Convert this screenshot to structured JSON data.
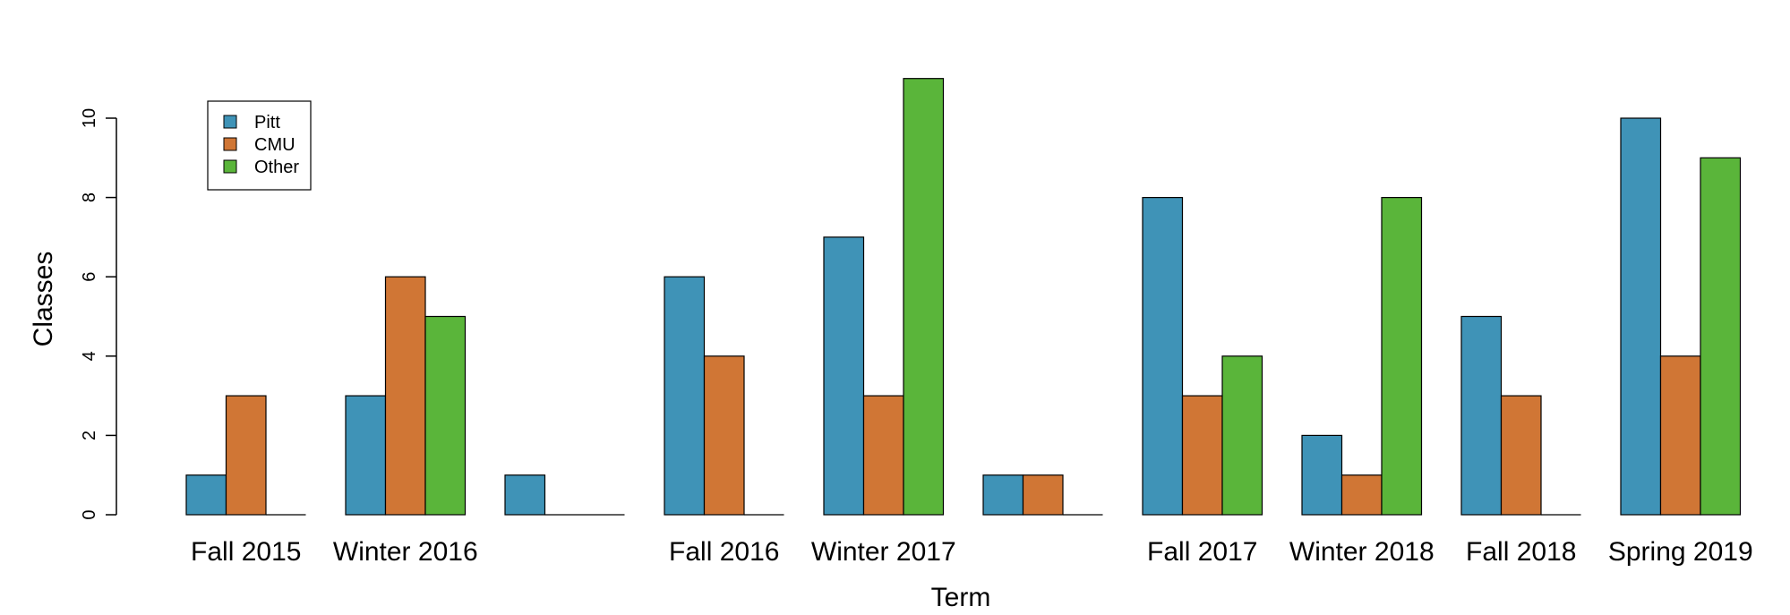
{
  "chart_data": {
    "type": "bar",
    "title": "",
    "xlabel": "Term",
    "ylabel": "Classes",
    "ylim": [
      0,
      10
    ],
    "yticks": [
      0,
      2,
      4,
      6,
      8,
      10
    ],
    "grid": false,
    "legend_position": "top-left",
    "categories": [
      "Fall 2015",
      "Winter 2016",
      "",
      "Fall 2016",
      "Winter 2017",
      "",
      "Fall 2017",
      "Winter 2018",
      "Fall 2018",
      "Spring 2019"
    ],
    "series": [
      {
        "name": "Pitt",
        "color": "#3f93b7",
        "values": [
          1,
          3,
          1,
          6,
          7,
          1,
          8,
          2,
          5,
          10
        ]
      },
      {
        "name": "CMU",
        "color": "#d07635",
        "values": [
          3,
          6,
          0,
          4,
          3,
          1,
          3,
          1,
          3,
          4
        ]
      },
      {
        "name": "Other",
        "color": "#5ab53a",
        "values": [
          0,
          5,
          0,
          0,
          11,
          0,
          4,
          8,
          0,
          9
        ]
      }
    ]
  }
}
